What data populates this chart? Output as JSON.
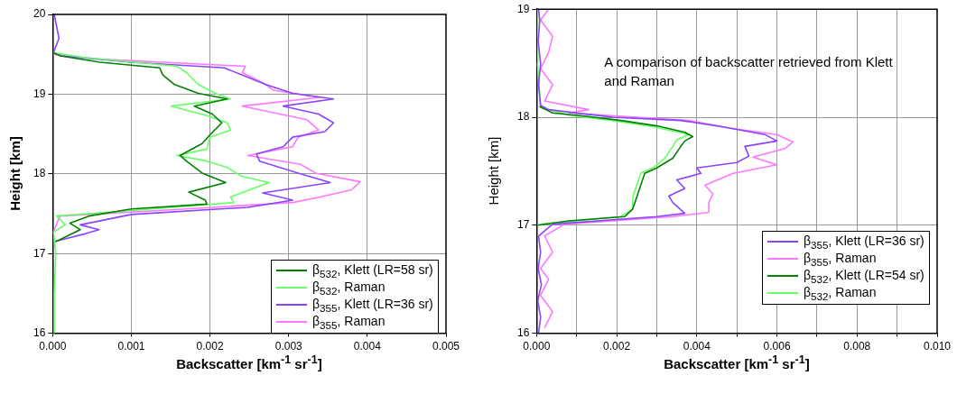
{
  "chart_data": [
    {
      "type": "line",
      "xlabel": "Backscatter [km$^{-1}$ sr$^{-1}$]",
      "ylabel": "Height [km]",
      "xlim": [
        0,
        0.005
      ],
      "ylim": [
        16,
        20
      ],
      "xticks": [
        {
          "value": 0,
          "label": "0.000"
        },
        {
          "value": 0.001,
          "label": "0.001"
        },
        {
          "value": 0.002,
          "label": "0.002"
        },
        {
          "value": 0.003,
          "label": "0.003"
        },
        {
          "value": 0.004,
          "label": "0.004"
        },
        {
          "value": 0.005,
          "label": "0.005"
        }
      ],
      "yticks": [
        16,
        17,
        18,
        19,
        20
      ],
      "grid": true,
      "legend": "bottom right",
      "series": [
        {
          "name": "β$_{532}$, Klett (LR=58 sr)",
          "color": "#008000",
          "x": [
            4e-05,
            0.00035,
            0.00022,
            0.00046,
            0.001,
            0.00196,
            0.00194,
            0.00173,
            0.0022,
            0.0019,
            0.0017,
            0.00162,
            0.0019,
            0.002,
            0.00215,
            0.00203,
            0.0018,
            0.00222,
            0.00185,
            0.00155,
            0.0014,
            0.00136,
            0.0006,
            0.0001,
            1e-05
          ],
          "values": [
            17.15,
            17.3,
            17.38,
            17.47,
            17.56,
            17.62,
            17.67,
            17.77,
            17.89,
            18.01,
            18.16,
            18.23,
            18.38,
            18.49,
            18.64,
            18.75,
            18.85,
            18.94,
            19.01,
            19.12,
            19.24,
            19.33,
            19.4,
            19.48,
            19.52
          ]
        },
        {
          "name": "β$_{532}$, Raman",
          "color": "#66ff66",
          "x": [
            3e-05,
            2e-05,
            4e-05,
            1e-05,
            0.00016,
            5e-05,
            0.001,
            0.0023,
            0.00226,
            0.00256,
            0.00275,
            0.0024,
            0.00222,
            0.00196,
            0.00158,
            0.00196,
            0.002,
            0.00226,
            0.00222,
            0.00196,
            0.00151,
            0.00226,
            0.00207,
            0.00185,
            0.0017,
            0.00158,
            0.0004,
            1e-05
          ],
          "values": [
            16,
            16.5,
            17,
            17.27,
            17.36,
            17.47,
            17.54,
            17.64,
            17.71,
            17.82,
            17.89,
            17.97,
            18.08,
            18.16,
            18.23,
            18.31,
            18.46,
            18.55,
            18.64,
            18.73,
            18.85,
            18.94,
            19.01,
            19.12,
            19.27,
            19.35,
            19.46,
            19.52
          ]
        },
        {
          "name": "β$_{355}$, Klett (LR=36 sr)",
          "color": "#8844ff",
          "x": [
            2e-05,
            0.00042,
            0.00059,
            0.00035,
            0.001,
            0.00248,
            0.00305,
            0.00267,
            0.00353,
            0.00312,
            0.00263,
            0.00259,
            0.00293,
            0.00305,
            0.00346,
            0.00357,
            0.00338,
            0.00293,
            0.00357,
            0.00305,
            0.00271,
            0.00241,
            0.00218,
            0.001,
            0.0001,
            1e-05,
            8e-05,
            5e-05,
            2e-05
          ],
          "values": [
            17.15,
            17.25,
            17.3,
            17.36,
            17.49,
            17.58,
            17.67,
            17.76,
            17.89,
            18.01,
            18.16,
            18.25,
            18.34,
            18.46,
            18.53,
            18.64,
            18.75,
            18.85,
            18.94,
            19.01,
            19.12,
            19.24,
            19.33,
            19.4,
            19.48,
            19.52,
            19.7,
            19.85,
            20
          ]
        },
        {
          "name": "β$_{355}$, Raman",
          "color": "#ff77ff",
          "x": [
            1e-05,
            9e-05,
            0.0017,
            0.00305,
            0.0034,
            0.0038,
            0.00391,
            0.00334,
            0.00315,
            0.00248,
            0.00305,
            0.00312,
            0.00338,
            0.00323,
            0.00241,
            0.0034,
            0.0028,
            0.00271,
            0.00241,
            0.00245,
            0.0006,
            1e-05
          ],
          "values": [
            17.27,
            17.47,
            17.56,
            17.64,
            17.71,
            17.8,
            17.9,
            18.01,
            18.12,
            18.23,
            18.34,
            18.46,
            18.55,
            18.68,
            18.85,
            18.96,
            19.05,
            19.12,
            19.27,
            19.35,
            19.44,
            19.5
          ]
        }
      ]
    },
    {
      "type": "line",
      "xlabel": "Backscatter [km$^{-1}$ sr$^{-1}$]",
      "ylabel": "Height [km]",
      "xlim": [
        0,
        0.01
      ],
      "ylim": [
        16,
        19
      ],
      "xticks": [
        {
          "value": 0,
          "label": "0.000"
        },
        {
          "value": 0.001,
          "label": null
        },
        {
          "value": 0.002,
          "label": "0.002"
        },
        {
          "value": 0.003,
          "label": null
        },
        {
          "value": 0.004,
          "label": "0.004"
        },
        {
          "value": 0.005,
          "label": null
        },
        {
          "value": 0.006,
          "label": "0.006"
        },
        {
          "value": 0.007,
          "label": null
        },
        {
          "value": 0.008,
          "label": "0.008"
        },
        {
          "value": 0.009,
          "label": null
        },
        {
          "value": 0.01,
          "label": "0.010"
        }
      ],
      "yticks": [
        16,
        17,
        18,
        19
      ],
      "grid": true,
      "legend": "bottom right",
      "annotations": [
        "A comparison of backscatter retrieved from Klett and Raman"
      ],
      "series": [
        {
          "name": "β$_{355}$, Klett (LR=36 sr)",
          "color": "#8844ff",
          "x": [
            5e-05,
            0.0001,
            3e-05,
            0.00012,
            4e-05,
            0.0001,
            5e-05,
            0.0004,
            0.003,
            0.0037,
            0.0034,
            0.0033,
            0.0037,
            0.0035,
            0.0041,
            0.004,
            0.005,
            0.0053,
            0.0052,
            0.006,
            0.0057,
            0.0045,
            0.0036,
            0.0019,
            0.0012,
            0.0003,
            0.0001,
            5e-05,
            0.0001,
            4e-05,
            8e-05,
            5e-05
          ],
          "values": [
            16,
            16.15,
            16.3,
            16.45,
            16.6,
            16.75,
            16.9,
            17.01,
            17.08,
            17.11,
            17.21,
            17.27,
            17.34,
            17.42,
            17.48,
            17.53,
            17.58,
            17.64,
            17.73,
            17.78,
            17.84,
            17.92,
            17.97,
            18.0,
            18.03,
            18.07,
            18.11,
            18.3,
            18.5,
            18.7,
            18.9,
            19
          ]
        },
        {
          "name": "β$_{355}$, Raman",
          "color": "#ff77ff",
          "x": [
            0.0002,
            0.0004,
            0.0001,
            0.0003,
            0.0001,
            0.0004,
            0.0002,
            0.0007,
            0.0034,
            0.0043,
            0.0043,
            0.0044,
            0.0042,
            0.0049,
            0.006,
            0.0054,
            0.0062,
            0.0064,
            0.006,
            0.0048,
            0.0038,
            0.0025,
            0.0008,
            0.0013,
            0.0002,
            0.0004,
            0.0001,
            0.0003,
            0.0004,
            0.0001,
            0.0003
          ],
          "values": [
            16.05,
            16.2,
            16.35,
            16.5,
            16.6,
            16.75,
            16.9,
            17.01,
            17.08,
            17.12,
            17.21,
            17.29,
            17.37,
            17.48,
            17.56,
            17.63,
            17.71,
            17.77,
            17.84,
            17.9,
            17.97,
            18.0,
            18.04,
            18.07,
            18.15,
            18.3,
            18.45,
            18.6,
            18.75,
            18.9,
            19
          ]
        },
        {
          "name": "β$_{532}$, Klett (LR=54 sr)",
          "color": "#008000",
          "x": [
            3e-05,
            0.0008,
            0.0022,
            0.0024,
            0.0025,
            0.0026,
            0.0027,
            0.003,
            0.0034,
            0.0036,
            0.0037,
            0.0039,
            0.0037,
            0.003,
            0.0021,
            0.0012,
            0.0004,
            7e-05
          ],
          "values": [
            17,
            17.04,
            17.08,
            17.15,
            17.26,
            17.37,
            17.48,
            17.53,
            17.62,
            17.73,
            17.78,
            17.82,
            17.86,
            17.92,
            17.97,
            18.01,
            18.04,
            18.1
          ]
        },
        {
          "name": "β$_{532}$, Raman",
          "color": "#66ff66",
          "x": [
            0.0001,
            0.0021,
            0.0024,
            0.0024,
            0.0025,
            0.0026,
            0.0029,
            0.0032,
            0.0034,
            0.0035,
            0.0038,
            0.0028,
            0.0019,
            0.0008,
            0.0001,
            2e-05,
            3e-05
          ],
          "values": [
            17.01,
            17.08,
            17.15,
            17.26,
            17.37,
            17.48,
            17.53,
            17.62,
            17.73,
            17.79,
            17.84,
            17.92,
            17.97,
            18.02,
            18.09,
            18.5,
            19
          ]
        }
      ]
    }
  ]
}
